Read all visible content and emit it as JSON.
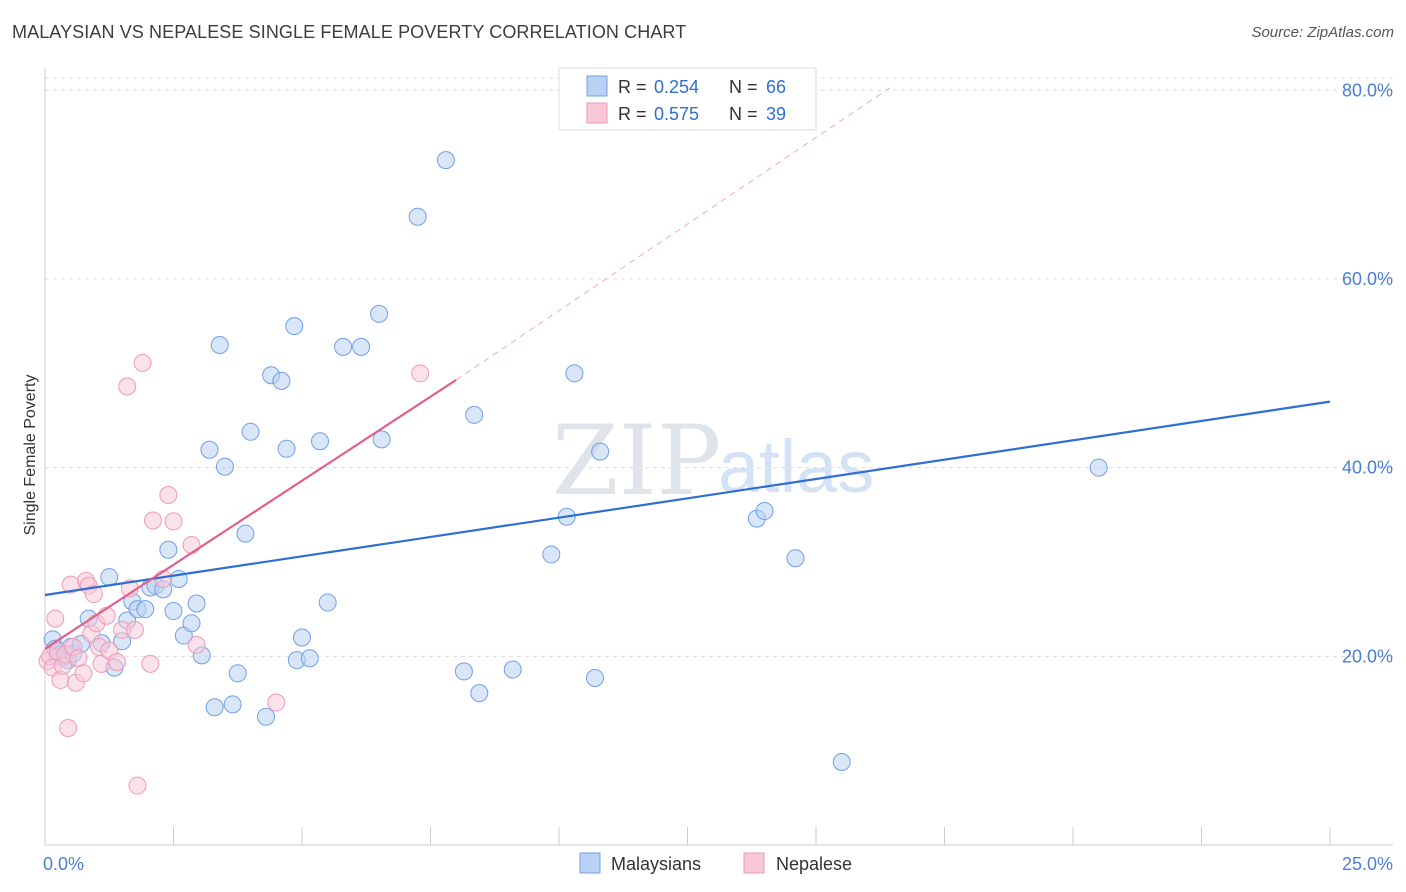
{
  "title": "MALAYSIAN VS NEPALESE SINGLE FEMALE POVERTY CORRELATION CHART",
  "source": "Source: ZipAtlas.com",
  "watermark": {
    "zip": "ZIP",
    "atlas": "atlas"
  },
  "chart_data": {
    "type": "scatter",
    "xlabel": "",
    "ylabel": "Single Female Poverty",
    "xlim": [
      0,
      25
    ],
    "ylim": [
      0,
      83
    ],
    "x_tick_labels": [
      {
        "value": 0,
        "label": "0.0%"
      },
      {
        "value": 25,
        "label": "25.0%"
      }
    ],
    "y_tick_labels": [
      {
        "value": 20,
        "label": "20.0%"
      },
      {
        "value": 40,
        "label": "40.0%"
      },
      {
        "value": 60,
        "label": "60.0%"
      },
      {
        "value": 80,
        "label": "80.0%"
      }
    ],
    "legend_box": [
      {
        "series": "Malaysians",
        "r_label": "R =",
        "r_value": "0.254",
        "n_label": "N =",
        "n_value": "66"
      },
      {
        "series": "Nepalese",
        "r_label": "R =",
        "r_value": "0.575",
        "n_label": "N =",
        "n_value": "39"
      }
    ],
    "series": [
      {
        "name": "Malaysians",
        "color": "#6fa0e8",
        "fill": "#b9d1f3",
        "trend": {
          "x0": 0,
          "y0": 26.5,
          "x1": 25,
          "y1": 47.0,
          "color": "#2f6fd1"
        },
        "points": [
          [
            0.15,
            21.8
          ],
          [
            0.2,
            20.8
          ],
          [
            0.25,
            20.0
          ],
          [
            0.3,
            20.2
          ],
          [
            0.35,
            19.9
          ],
          [
            0.45,
            19.6
          ],
          [
            0.5,
            21.0
          ],
          [
            0.55,
            20.3
          ],
          [
            0.7,
            21.3
          ],
          [
            0.85,
            24.0
          ],
          [
            1.1,
            21.4
          ],
          [
            1.25,
            28.4
          ],
          [
            1.35,
            18.8
          ],
          [
            1.5,
            21.6
          ],
          [
            1.6,
            23.8
          ],
          [
            1.7,
            25.8
          ],
          [
            1.8,
            25.0
          ],
          [
            1.95,
            25.0
          ],
          [
            2.05,
            27.3
          ],
          [
            2.15,
            27.5
          ],
          [
            2.3,
            27.1
          ],
          [
            2.4,
            31.3
          ],
          [
            2.5,
            24.8
          ],
          [
            2.6,
            28.2
          ],
          [
            2.7,
            22.2
          ],
          [
            2.85,
            23.5
          ],
          [
            2.95,
            25.6
          ],
          [
            3.05,
            20.1
          ],
          [
            3.2,
            41.9
          ],
          [
            3.3,
            14.6
          ],
          [
            3.4,
            53.0
          ],
          [
            3.5,
            40.1
          ],
          [
            3.65,
            14.9
          ],
          [
            3.75,
            18.2
          ],
          [
            3.9,
            33.0
          ],
          [
            4.0,
            43.8
          ],
          [
            4.3,
            13.6
          ],
          [
            4.4,
            49.8
          ],
          [
            4.6,
            49.2
          ],
          [
            4.7,
            42.0
          ],
          [
            4.85,
            55.0
          ],
          [
            4.9,
            19.6
          ],
          [
            5.0,
            22.0
          ],
          [
            5.15,
            19.8
          ],
          [
            5.35,
            42.8
          ],
          [
            5.5,
            25.7
          ],
          [
            5.8,
            52.8
          ],
          [
            6.15,
            52.8
          ],
          [
            6.5,
            56.3
          ],
          [
            6.55,
            43.0
          ],
          [
            7.25,
            66.6
          ],
          [
            7.8,
            72.6
          ],
          [
            8.15,
            18.4
          ],
          [
            8.35,
            45.6
          ],
          [
            8.45,
            16.1
          ],
          [
            9.1,
            18.6
          ],
          [
            9.85,
            30.8
          ],
          [
            10.15,
            34.8
          ],
          [
            10.3,
            50.0
          ],
          [
            10.7,
            17.7
          ],
          [
            10.8,
            41.7
          ],
          [
            13.85,
            34.6
          ],
          [
            14.0,
            35.4
          ],
          [
            14.6,
            30.4
          ],
          [
            15.5,
            8.8
          ],
          [
            20.5,
            40.0
          ]
        ]
      },
      {
        "name": "Nepalese",
        "color": "#ee9ab6",
        "fill": "#f8c8d8",
        "trend": {
          "x0": 0,
          "y0": 20.8,
          "x1": 8.0,
          "y1": 49.3,
          "color": "#e0608f"
        },
        "trend_dashed": {
          "x0": 8.0,
          "y0": 49.3,
          "x1": 16.5,
          "y1": 80.5
        },
        "points": [
          [
            0.05,
            19.5
          ],
          [
            0.1,
            20.0
          ],
          [
            0.15,
            18.8
          ],
          [
            0.2,
            24.0
          ],
          [
            0.25,
            20.5
          ],
          [
            0.3,
            17.5
          ],
          [
            0.35,
            19.0
          ],
          [
            0.4,
            20.2
          ],
          [
            0.45,
            12.4
          ],
          [
            0.5,
            27.6
          ],
          [
            0.55,
            21.0
          ],
          [
            0.6,
            17.2
          ],
          [
            0.65,
            19.8
          ],
          [
            0.75,
            18.2
          ],
          [
            0.8,
            28.0
          ],
          [
            0.85,
            27.5
          ],
          [
            0.9,
            22.4
          ],
          [
            0.95,
            26.6
          ],
          [
            1.0,
            23.5
          ],
          [
            1.05,
            21.0
          ],
          [
            1.1,
            19.2
          ],
          [
            1.2,
            24.3
          ],
          [
            1.25,
            20.6
          ],
          [
            1.4,
            19.4
          ],
          [
            1.5,
            22.8
          ],
          [
            1.6,
            48.6
          ],
          [
            1.65,
            27.2
          ],
          [
            1.75,
            22.8
          ],
          [
            1.8,
            6.3
          ],
          [
            1.9,
            51.1
          ],
          [
            2.05,
            19.2
          ],
          [
            2.1,
            34.4
          ],
          [
            2.3,
            28.2
          ],
          [
            2.4,
            37.1
          ],
          [
            2.5,
            34.3
          ],
          [
            2.85,
            31.8
          ],
          [
            2.95,
            21.2
          ],
          [
            4.5,
            15.1
          ],
          [
            7.3,
            50.0
          ]
        ]
      }
    ]
  },
  "bottom_legend": [
    {
      "label": "Malaysians",
      "color": "#b9d1f3",
      "stroke": "#6fa0e8"
    },
    {
      "label": "Nepalese",
      "color": "#f8c8d8",
      "stroke": "#ee9ab6"
    }
  ]
}
